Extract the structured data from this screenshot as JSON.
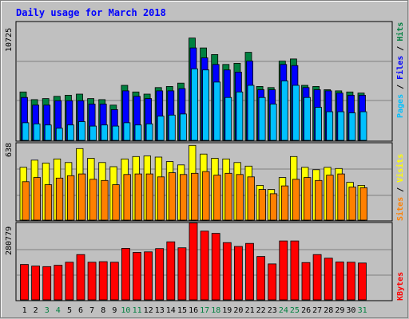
{
  "colors": {
    "background": "#C0C0C0",
    "frame": "#808080",
    "title": "#0000FF",
    "hits": "#008040",
    "files": "#0000FF",
    "pages": "#00C0FF",
    "visits": "#FFFF00",
    "sites": "#FF8000",
    "kbytes": "#FF0000",
    "weekend_tick": "#008040",
    "weekday_tick": "#000000",
    "grid": "#808080"
  },
  "chart_data": [
    {
      "type": "bar",
      "title": "Daily usage for March 2018",
      "panel": "top",
      "ymax_label": "10725",
      "ylim": [
        0,
        10725
      ],
      "legend": [
        "Pages",
        "Files",
        "Hits"
      ],
      "categories": [
        "1",
        "2",
        "3",
        "4",
        "5",
        "6",
        "7",
        "8",
        "9",
        "10",
        "11",
        "12",
        "13",
        "14",
        "15",
        "16",
        "17",
        "18",
        "19",
        "20",
        "21",
        "22",
        "23",
        "24",
        "25",
        "26",
        "27",
        "28",
        "29",
        "30",
        "31"
      ],
      "series": [
        {
          "name": "Hits",
          "values": [
            4400,
            3700,
            3800,
            4000,
            4100,
            4200,
            3800,
            3700,
            3200,
            5000,
            4400,
            4200,
            4800,
            4900,
            5200,
            9300,
            8400,
            7800,
            6900,
            7000,
            8000,
            4900,
            4800,
            7200,
            7400,
            5000,
            4900,
            4600,
            4500,
            4400,
            4300
          ]
        },
        {
          "name": "Files",
          "values": [
            3900,
            3200,
            3200,
            3600,
            3600,
            3600,
            3300,
            3300,
            2800,
            4500,
            4000,
            3800,
            4500,
            4500,
            4700,
            8400,
            7500,
            6900,
            6400,
            6200,
            7200,
            4600,
            4600,
            6900,
            6800,
            4800,
            4600,
            4500,
            4300,
            4100,
            4100
          ]
        },
        {
          "name": "Pages",
          "values": [
            1600,
            1500,
            1400,
            1100,
            1400,
            1700,
            1300,
            1400,
            1300,
            1600,
            1400,
            1500,
            2200,
            2300,
            2400,
            6500,
            6400,
            5300,
            3900,
            4400,
            5000,
            3900,
            3300,
            5400,
            5000,
            3900,
            3000,
            2600,
            2600,
            2500,
            2600
          ]
        }
      ]
    },
    {
      "type": "bar",
      "panel": "middle",
      "ymax_label": "638",
      "ylim": [
        0,
        638
      ],
      "legend": [
        "Sites",
        "Visits"
      ],
      "categories": [
        "1",
        "2",
        "3",
        "4",
        "5",
        "6",
        "7",
        "8",
        "9",
        "10",
        "11",
        "12",
        "13",
        "14",
        "15",
        "16",
        "17",
        "18",
        "19",
        "20",
        "21",
        "22",
        "23",
        "24",
        "25",
        "26",
        "27",
        "28",
        "29",
        "30",
        "31"
      ],
      "series": [
        {
          "name": "Visits",
          "values": [
            440,
            500,
            475,
            510,
            480,
            596,
            515,
            480,
            445,
            510,
            530,
            535,
            525,
            488,
            460,
            623,
            550,
            515,
            510,
            480,
            450,
            290,
            255,
            355,
            530,
            440,
            420,
            440,
            430,
            315,
            290
          ]
        },
        {
          "name": "Sites",
          "values": [
            320,
            355,
            295,
            350,
            370,
            385,
            340,
            330,
            295,
            380,
            385,
            385,
            360,
            395,
            380,
            390,
            405,
            375,
            390,
            380,
            360,
            255,
            220,
            285,
            340,
            355,
            330,
            375,
            385,
            275,
            270
          ]
        }
      ]
    },
    {
      "type": "bar",
      "panel": "bottom",
      "ymax_label": "280779",
      "ylim": [
        0,
        280779
      ],
      "legend": [
        "KBytes"
      ],
      "categories": [
        "1",
        "2",
        "3",
        "4",
        "5",
        "6",
        "7",
        "8",
        "9",
        "10",
        "11",
        "12",
        "13",
        "14",
        "15",
        "16",
        "17",
        "18",
        "19",
        "20",
        "21",
        "22",
        "23",
        "24",
        "25",
        "26",
        "27",
        "28",
        "29",
        "30",
        "31"
      ],
      "series": [
        {
          "name": "KBytes",
          "values": [
            130000,
            124000,
            122000,
            127000,
            138000,
            166000,
            138000,
            140000,
            138000,
            189000,
            174000,
            176000,
            188000,
            213000,
            191000,
            282000,
            252000,
            244000,
            210000,
            196000,
            207000,
            159000,
            132000,
            216000,
            216000,
            137000,
            166000,
            153000,
            139000,
            138000,
            135000
          ]
        }
      ]
    }
  ],
  "x_axis": {
    "labels": [
      "1",
      "2",
      "3",
      "4",
      "5",
      "6",
      "7",
      "8",
      "9",
      "10",
      "11",
      "12",
      "13",
      "14",
      "15",
      "16",
      "17",
      "18",
      "19",
      "20",
      "21",
      "22",
      "23",
      "24",
      "25",
      "26",
      "27",
      "28",
      "29",
      "30",
      "31"
    ],
    "weekend_days": [
      "3",
      "4",
      "10",
      "11",
      "17",
      "18",
      "24",
      "25",
      "31"
    ]
  }
}
